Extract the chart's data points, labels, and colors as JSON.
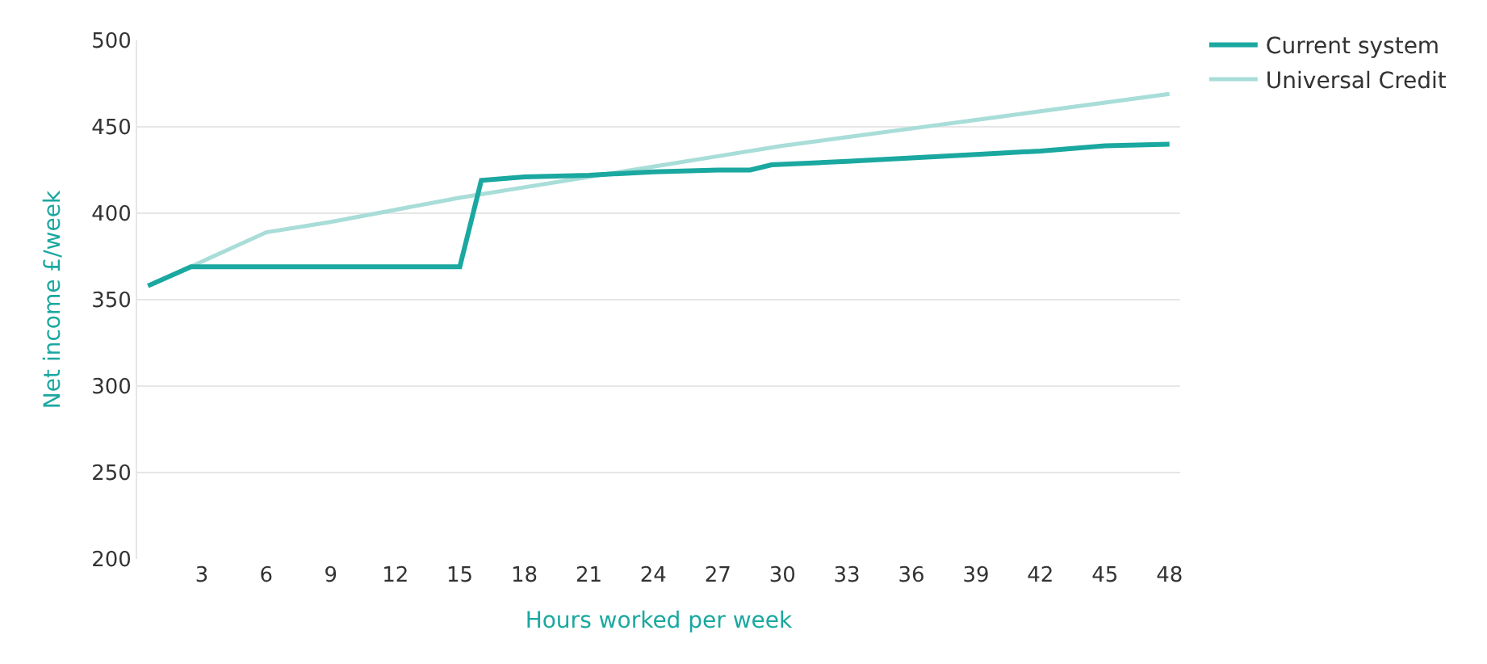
{
  "chart_data": {
    "type": "line",
    "xlabel": "Hours worked per week",
    "ylabel": "Net income £/week",
    "xlim": [
      0,
      48.5
    ],
    "xticks": [
      3,
      6,
      9,
      12,
      15,
      18,
      21,
      24,
      27,
      30,
      33,
      36,
      39,
      42,
      45,
      48
    ],
    "ylim": [
      200,
      500
    ],
    "yticks": [
      200,
      250,
      300,
      350,
      400,
      450,
      500
    ],
    "grid": "y",
    "legend": "top right",
    "marker": "none",
    "line_style": "solid",
    "series": [
      {
        "name": "Current system",
        "color": "#1aa8a0",
        "x": [
          0.5,
          2.5,
          15,
          16,
          18,
          21,
          24,
          27,
          28.5,
          29.5,
          33,
          36,
          39,
          42,
          45,
          48
        ],
        "values": [
          358,
          369,
          369,
          419,
          421,
          422,
          424,
          425,
          425,
          428,
          430,
          432,
          434,
          436,
          439,
          440
        ]
      },
      {
        "name": "Universal Credit",
        "color": "#a8ddd8",
        "x": [
          0.5,
          3,
          6,
          9,
          12,
          15,
          18,
          21,
          24,
          27,
          30,
          33,
          36,
          39,
          42,
          45,
          48
        ],
        "values": [
          358,
          372,
          389,
          395,
          402,
          409,
          415,
          421,
          427,
          433,
          439,
          444,
          449,
          454,
          459,
          464,
          469
        ]
      }
    ]
  }
}
